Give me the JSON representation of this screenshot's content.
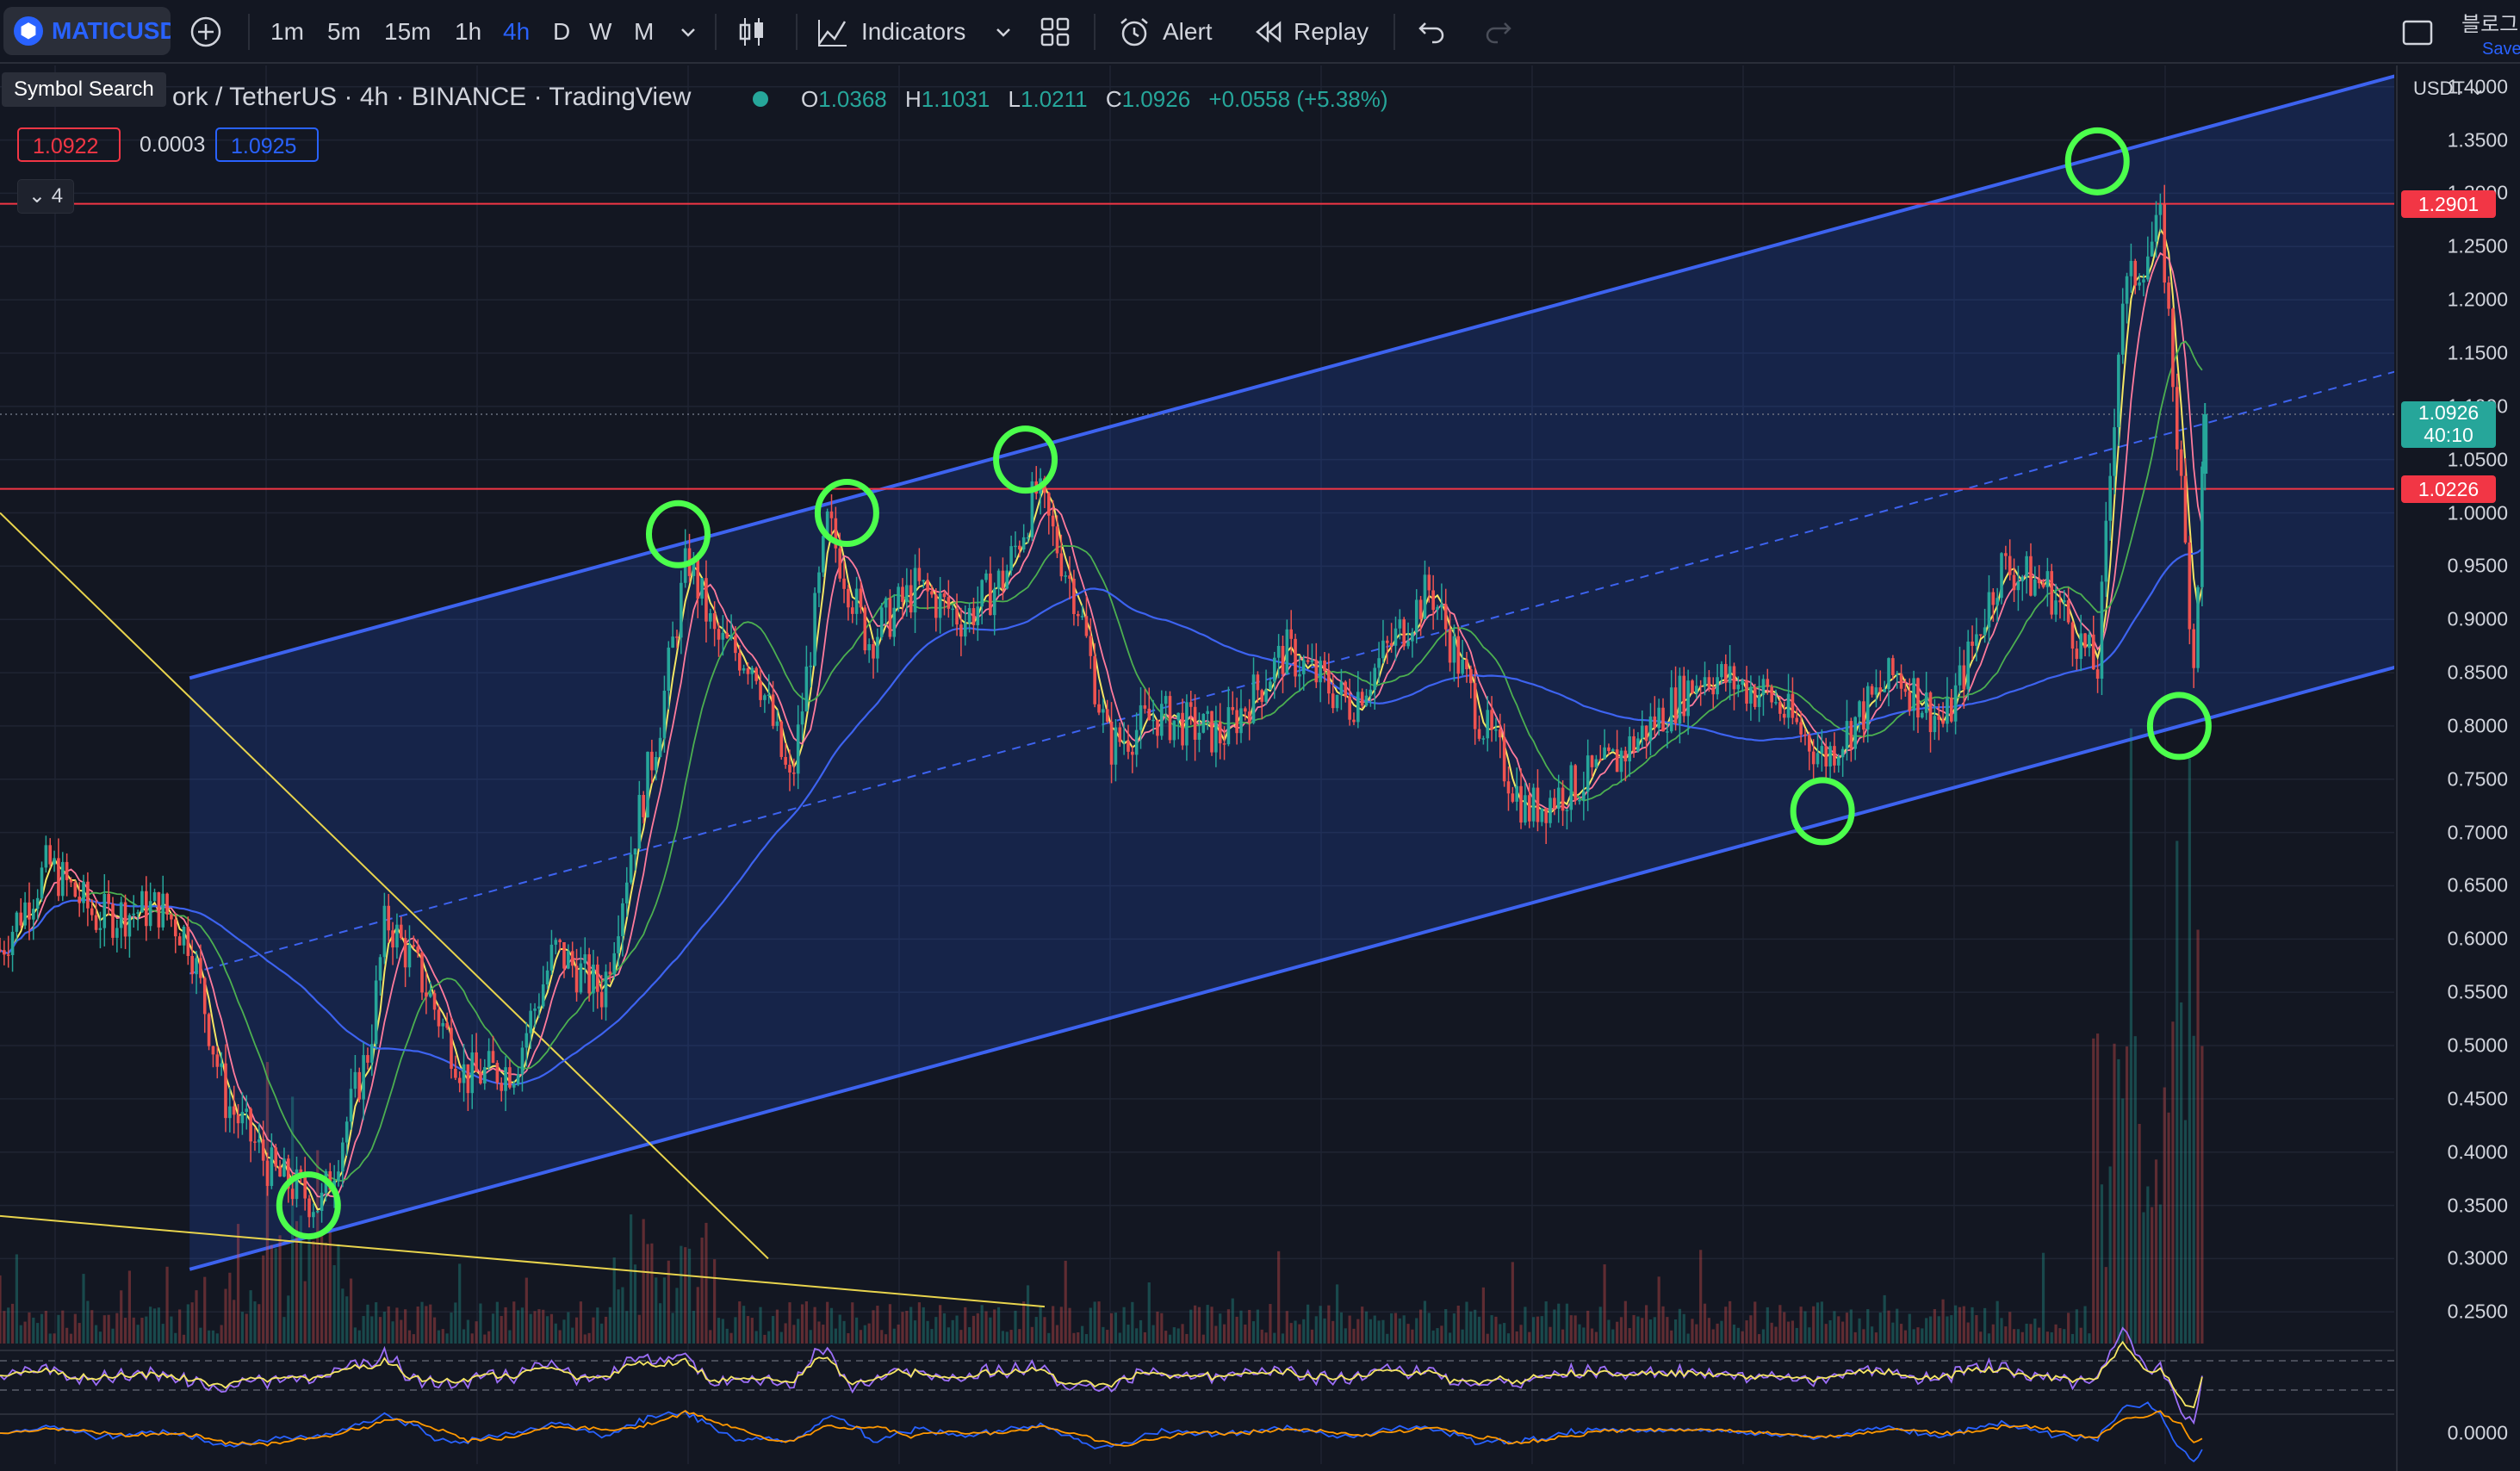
{
  "toolbar": {
    "symbol": "MATICUSDT",
    "intervals": [
      "1m",
      "5m",
      "15m",
      "1h",
      "4h",
      "D",
      "W",
      "M"
    ],
    "active_interval": "4h",
    "indicators_label": "Indicators",
    "alert_label": "Alert",
    "replay_label": "Replay",
    "right_text": "블로그",
    "save_label": "Save"
  },
  "legend": {
    "tooltip": "Symbol Search",
    "title": "ork / TetherUS · 4h · BINANCE · TradingView",
    "o_label": "O",
    "o_value": "1.0368",
    "h_label": "H",
    "h_value": "1.1031",
    "l_label": "L",
    "l_value": "1.0211",
    "c_label": "C",
    "c_value": "1.0926",
    "change": "+0.0558 (+5.38%)",
    "sell_price": "1.0922",
    "spread": "0.0003",
    "buy_price": "1.0925",
    "indicator_count": "4"
  },
  "price_scale": {
    "currency": "USDT",
    "ticks": [
      "1.4000",
      "1.3500",
      "1.3000",
      "1.2500",
      "1.2000",
      "1.1500",
      "1.1000",
      "1.0500",
      "1.0000",
      "0.9500",
      "0.9000",
      "0.8500",
      "0.8000",
      "0.7500",
      "0.7000",
      "0.6500",
      "0.6000",
      "0.5500",
      "0.5000",
      "0.4500",
      "0.4000",
      "0.3500",
      "0.3000",
      "0.2500"
    ],
    "hline_upper": "1.2901",
    "hline_lower": "1.0226",
    "current_price": "1.0926",
    "countdown": "40:10",
    "oscillator_zero": "0.0000"
  },
  "colors": {
    "background": "#131722",
    "up": "#26a69a",
    "down": "#ef5350",
    "channel": "#2962ff",
    "hline": "#f23645",
    "annotation": "#4cff4c",
    "trendline": "#e8d44d"
  },
  "chart_data": {
    "type": "candlestick",
    "symbol": "MATICUSDT",
    "interval": "4h",
    "exchange": "BINANCE",
    "ylim": [
      0.23,
      1.42
    ],
    "last": {
      "open": 1.0368,
      "high": 1.1031,
      "low": 1.0211,
      "close": 1.0926
    },
    "price_path": [
      [
        0,
        0.59
      ],
      [
        30,
        0.67
      ],
      [
        60,
        0.62
      ],
      [
        100,
        0.63
      ],
      [
        118,
        0.6
      ],
      [
        140,
        0.45
      ],
      [
        170,
        0.38
      ],
      [
        200,
        0.35
      ],
      [
        230,
        0.5
      ],
      [
        240,
        0.62
      ],
      [
        260,
        0.57
      ],
      [
        290,
        0.47
      ],
      [
        320,
        0.48
      ],
      [
        345,
        0.59
      ],
      [
        375,
        0.55
      ],
      [
        392,
        0.68
      ],
      [
        410,
        0.8
      ],
      [
        428,
        0.96
      ],
      [
        445,
        0.88
      ],
      [
        470,
        0.86
      ],
      [
        492,
        0.74
      ],
      [
        515,
        0.99
      ],
      [
        540,
        0.88
      ],
      [
        570,
        0.93
      ],
      [
        600,
        0.9
      ],
      [
        625,
        0.94
      ],
      [
        645,
        1.02
      ],
      [
        670,
        0.92
      ],
      [
        690,
        0.78
      ],
      [
        720,
        0.81
      ],
      [
        760,
        0.79
      ],
      [
        800,
        0.87
      ],
      [
        840,
        0.82
      ],
      [
        890,
        0.93
      ],
      [
        920,
        0.81
      ],
      [
        950,
        0.72
      ],
      [
        1000,
        0.76
      ],
      [
        1060,
        0.85
      ],
      [
        1100,
        0.83
      ],
      [
        1135,
        0.77
      ],
      [
        1180,
        0.85
      ],
      [
        1210,
        0.8
      ],
      [
        1245,
        0.95
      ],
      [
        1275,
        0.93
      ],
      [
        1305,
        0.85
      ],
      [
        1320,
        1.2
      ],
      [
        1345,
        1.27
      ],
      [
        1365,
        0.86
      ],
      [
        1372,
        1.09
      ]
    ],
    "channel": {
      "lower": [
        [
          118,
          0.29
        ],
        [
          1490,
          0.855
        ]
      ],
      "upper": [
        [
          118,
          0.845
        ],
        [
          1490,
          1.41
        ]
      ]
    },
    "horizontal_lines": [
      1.2901,
      1.0226
    ],
    "touch_marks": [
      [
        192,
        0.35
      ],
      [
        422,
        0.98
      ],
      [
        527,
        1.0
      ],
      [
        638,
        1.05
      ],
      [
        1134,
        0.72
      ],
      [
        1305,
        1.33
      ],
      [
        1356,
        0.8
      ]
    ]
  }
}
